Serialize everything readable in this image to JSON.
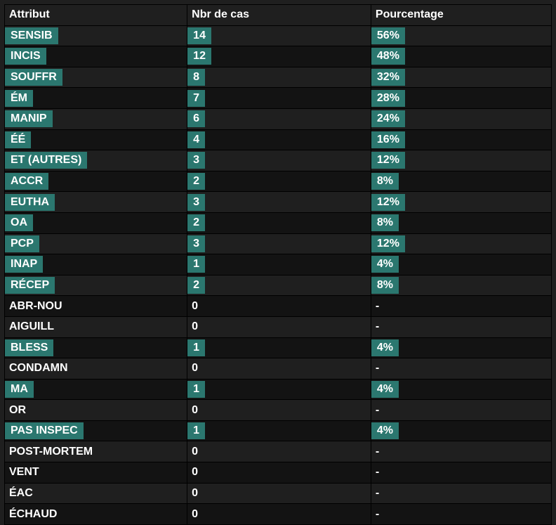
{
  "table": {
    "columns": [
      "Attribut",
      "Nbr de cas",
      "Pourcentage"
    ],
    "highlight_color": "#2b776f",
    "bg_odd": "#1f1f1f",
    "bg_even": "#131313",
    "border_color": "#000000",
    "text_color": "#ffffff",
    "rows": [
      {
        "attr": "SENSIB",
        "n": "14",
        "pct": "56%",
        "hl": true
      },
      {
        "attr": "INCIS",
        "n": "12",
        "pct": "48%",
        "hl": true
      },
      {
        "attr": "SOUFFR",
        "n": "8",
        "pct": "32%",
        "hl": true
      },
      {
        "attr": "ÉM",
        "n": "7",
        "pct": "28%",
        "hl": true
      },
      {
        "attr": "MANIP",
        "n": "6",
        "pct": "24%",
        "hl": true
      },
      {
        "attr": "ÉÉ",
        "n": "4",
        "pct": "16%",
        "hl": true
      },
      {
        "attr": "ET (AUTRES)",
        "n": "3",
        "pct": "12%",
        "hl": true
      },
      {
        "attr": "ACCR",
        "n": "2",
        "pct": "8%",
        "hl": true
      },
      {
        "attr": "EUTHA",
        "n": "3",
        "pct": "12%",
        "hl": true
      },
      {
        "attr": "OA",
        "n": "2",
        "pct": "8%",
        "hl": true
      },
      {
        "attr": "PCP",
        "n": "3",
        "pct": "12%",
        "hl": true
      },
      {
        "attr": "INAP",
        "n": "1",
        "pct": "4%",
        "hl": true
      },
      {
        "attr": "RÉCEP",
        "n": "2",
        "pct": "8%",
        "hl": true
      },
      {
        "attr": "ABR-NOU",
        "n": "0",
        "pct": "-",
        "hl": false
      },
      {
        "attr": "AIGUILL",
        "n": "0",
        "pct": "-",
        "hl": false
      },
      {
        "attr": "BLESS",
        "n": "1",
        "pct": "4%",
        "hl": true
      },
      {
        "attr": "CONDAMN",
        "n": "0",
        "pct": "-",
        "hl": false
      },
      {
        "attr": "MA",
        "n": "1",
        "pct": "4%",
        "hl": true
      },
      {
        "attr": "OR",
        "n": "0",
        "pct": "-",
        "hl": false
      },
      {
        "attr": "PAS INSPEC",
        "n": "1",
        "pct": "4%",
        "hl": true
      },
      {
        "attr": "POST-MORTEM",
        "n": "0",
        "pct": "-",
        "hl": false
      },
      {
        "attr": "VENT",
        "n": "0",
        "pct": "-",
        "hl": false
      },
      {
        "attr": "ÉAC",
        "n": "0",
        "pct": "-",
        "hl": false
      },
      {
        "attr": "ÉCHAUD",
        "n": "0",
        "pct": "-",
        "hl": false
      }
    ]
  }
}
